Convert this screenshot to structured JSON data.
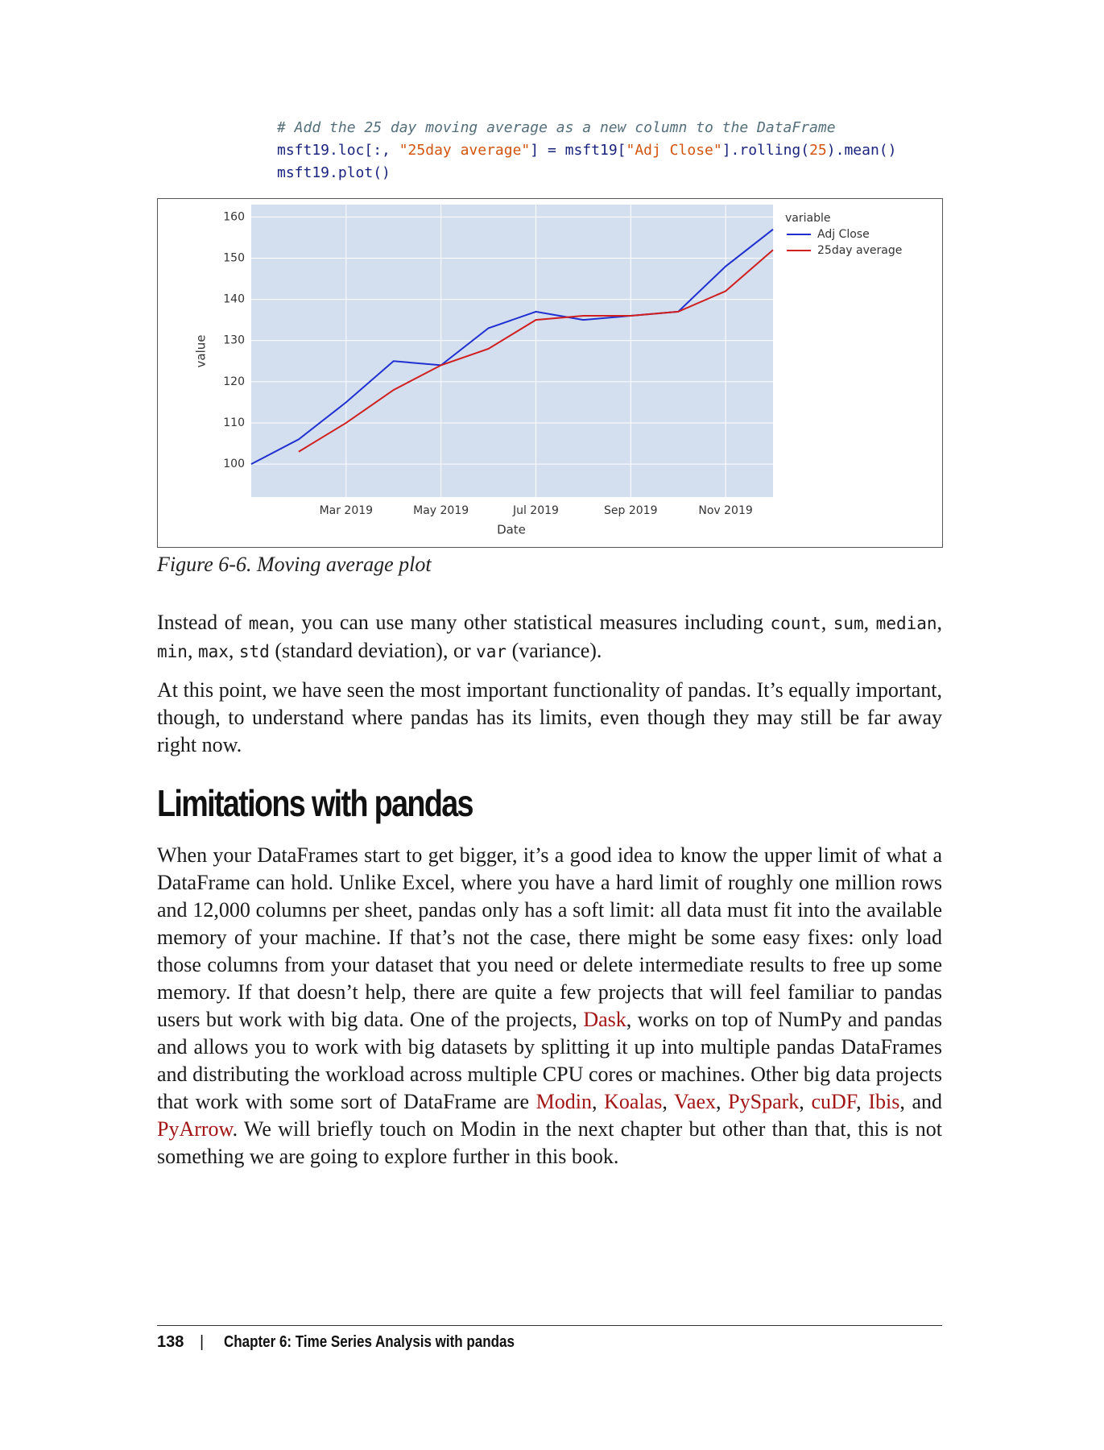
{
  "code": {
    "line1": "# Add the 25 day moving average as a new column to the DataFrame",
    "line2": [
      "msft19.loc[:, ",
      "\"25day average\"",
      "] = msft19[",
      "\"Adj Close\"",
      "].rolling(",
      "25",
      ").mean()"
    ],
    "line3": "msft19.plot()"
  },
  "chart_data": {
    "type": "line",
    "x": [
      "2019-01",
      "2019-02",
      "2019-03",
      "2019-04",
      "2019-05",
      "2019-06",
      "2019-07",
      "2019-08",
      "2019-09",
      "2019-10",
      "2019-11",
      "2019-12"
    ],
    "series": [
      {
        "name": "Adj Close",
        "color": "#1f2fd0",
        "values": [
          100,
          106,
          115,
          125,
          124,
          133,
          137,
          135,
          136,
          137,
          148,
          157
        ]
      },
      {
        "name": "25day average",
        "color": "#d01f1f",
        "values": [
          null,
          103,
          110,
          118,
          124,
          128,
          135,
          136,
          136,
          137,
          142,
          152
        ]
      }
    ],
    "xlim": [
      "2019-01",
      "2019-12"
    ],
    "xticks": [
      {
        "value": "2019-03",
        "label": "Mar 2019"
      },
      {
        "value": "2019-05",
        "label": "May 2019"
      },
      {
        "value": "2019-07",
        "label": "Jul 2019"
      },
      {
        "value": "2019-09",
        "label": "Sep 2019"
      },
      {
        "value": "2019-11",
        "label": "Nov 2019"
      }
    ],
    "ylim": [
      92,
      163
    ],
    "yticks": [
      100,
      110,
      120,
      130,
      140,
      150,
      160
    ],
    "xlabel": "Date",
    "ylabel": "value",
    "legend_title": "variable",
    "legend": "outside-right",
    "grid": true
  },
  "caption": "Figure 6-6. Moving average plot",
  "paragraphs": [
    [
      "Instead of ",
      "mean",
      ", you can use many other statistical measures including ",
      "count",
      ", ",
      "sum",
      ", ",
      "median",
      ", ",
      "min",
      ", ",
      "max",
      ", ",
      "std",
      " (standard deviation), or ",
      "var",
      " (variance)."
    ],
    [
      "At this point, we have seen the most important functionality of pandas. It’s equally important, though, to understand where pandas has its limits, even though they may still be far away right now."
    ],
    [
      "When your DataFrames start to get bigger, it’s a good idea to know the upper limit of what a DataFrame can hold. Unlike Excel, where you have a hard limit of roughly one million rows and 12,000 columns per sheet, pandas only has a soft limit: all data must fit into the available memory of your machine. If that’s not the case, there might be some easy fixes: only load those columns from your dataset that you need or delete intermediate results to free up some memory. If that doesn’t help, there are quite a few projects that will feel familiar to pandas users but work with big data. One of the projects, ",
      "Dask",
      ", works on top of NumPy and pandas and allows you to work with big datasets by splitting it up into multiple pandas DataFrames and distributing the workload across multiple CPU cores or machines. Other big data projects that work with some sort of DataFrame are ",
      "Modin",
      ", ",
      "Koalas",
      ", ",
      "Vaex",
      ", ",
      "PySpark",
      ", ",
      "cuDF",
      ", ",
      "Ibis",
      ", and ",
      "PyArrow",
      ". We will briefly touch on Modin in the next chapter but other than that, this is not something we are going to explore further in this book."
    ]
  ],
  "heading": "Limitations with pandas",
  "footer": {
    "page": "138",
    "separator": "|",
    "chapter": "Chapter 6: Time Series Analysis with pandas"
  }
}
